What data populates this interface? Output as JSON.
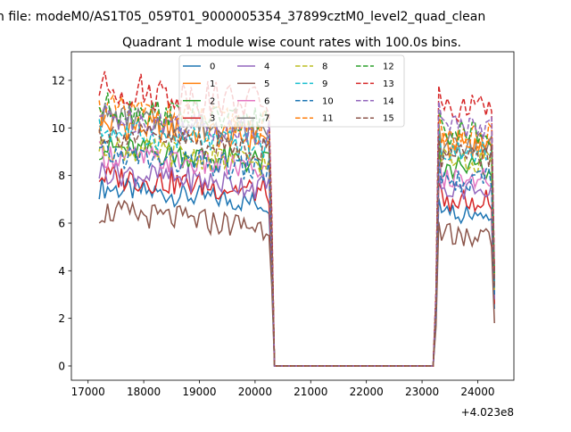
{
  "suptitle": "n file: modeM0/AS1T05_059T01_9000005354_37899cztM0_level2_quad_clean",
  "chart_data": {
    "type": "line",
    "title": "Quadrant 1 module wise count rates with 100.0s bins.",
    "xlabel": "",
    "ylabel": "",
    "x_offset_label": "+4.023e8",
    "x_ticks": [
      17000,
      18000,
      19000,
      20000,
      21000,
      22000,
      23000,
      24000
    ],
    "x_tick_labels": [
      "17000",
      "18000",
      "19000",
      "20000",
      "21000",
      "22000",
      "23000",
      "24000"
    ],
    "y_ticks": [
      0,
      2,
      4,
      6,
      8,
      10,
      12
    ],
    "y_tick_labels": [
      "0",
      "2",
      "4",
      "6",
      "8",
      "10",
      "12"
    ],
    "xlim": [
      16700,
      24650
    ],
    "ylim": [
      -0.6,
      13.2
    ],
    "grid": false,
    "legend_placement": "top-center",
    "legend_columns": 4,
    "segments": {
      "first": {
        "start": 17200,
        "end": 20300,
        "step": 50
      },
      "zero": {
        "start": 20350,
        "end": 23200
      },
      "second": {
        "start": 23250,
        "end": 24300,
        "step": 50
      }
    },
    "series": [
      {
        "name": "0",
        "color": "#1f77b4",
        "dash": "solid",
        "level_a": 6.6,
        "level_b": 6.4,
        "amp": 0.35,
        "end_drop": 2.4
      },
      {
        "name": "1",
        "color": "#ff7f0e",
        "dash": "solid",
        "level_a": 9.3,
        "level_b": 9.2,
        "amp": 0.45,
        "end_drop": 3.5
      },
      {
        "name": "2",
        "color": "#2ca02c",
        "dash": "solid",
        "level_a": 8.3,
        "level_b": 8.3,
        "amp": 0.4,
        "end_drop": 3.0
      },
      {
        "name": "3",
        "color": "#d62728",
        "dash": "solid",
        "level_a": 7.1,
        "level_b": 7.0,
        "amp": 0.4,
        "end_drop": 2.6
      },
      {
        "name": "4",
        "color": "#9467bd",
        "dash": "solid",
        "level_a": 7.3,
        "level_b": 7.3,
        "amp": 0.4,
        "end_drop": 2.8
      },
      {
        "name": "5",
        "color": "#8c564b",
        "dash": "solid",
        "level_a": 5.6,
        "level_b": 5.5,
        "amp": 0.4,
        "end_drop": 1.8
      },
      {
        "name": "6",
        "color": "#e377c2",
        "dash": "solid",
        "level_a": 8.0,
        "level_b": 7.9,
        "amp": 0.4,
        "end_drop": 3.0
      },
      {
        "name": "7",
        "color": "#7f7f7f",
        "dash": "solid",
        "level_a": 9.6,
        "level_b": 9.3,
        "amp": 0.4,
        "end_drop": 3.6
      },
      {
        "name": "8",
        "color": "#bcbd22",
        "dash": "dashed",
        "level_a": 8.3,
        "level_b": 8.6,
        "amp": 0.4,
        "end_drop": 3.2
      },
      {
        "name": "9",
        "color": "#17becf",
        "dash": "dashed",
        "level_a": 9.0,
        "level_b": 9.1,
        "amp": 0.4,
        "end_drop": 3.4
      },
      {
        "name": "10",
        "color": "#1f77b4",
        "dash": "dashed",
        "level_a": 8.0,
        "level_b": 7.8,
        "amp": 0.4,
        "end_drop": 3.0
      },
      {
        "name": "11",
        "color": "#ff7f0e",
        "dash": "dashed",
        "level_a": 9.9,
        "level_b": 9.6,
        "amp": 0.45,
        "end_drop": 3.8
      },
      {
        "name": "12",
        "color": "#2ca02c",
        "dash": "dashed",
        "level_a": 10.0,
        "level_b": 9.8,
        "amp": 0.45,
        "end_drop": 3.8
      },
      {
        "name": "13",
        "color": "#d62728",
        "dash": "dashed",
        "level_a": 10.8,
        "level_b": 10.7,
        "amp": 0.55,
        "end_drop": 4.0
      },
      {
        "name": "14",
        "color": "#9467bd",
        "dash": "dashed",
        "level_a": 9.6,
        "level_b": 10.1,
        "amp": 0.45,
        "end_drop": 3.7
      },
      {
        "name": "15",
        "color": "#8c564b",
        "dash": "dashed",
        "level_a": 8.9,
        "level_b": 8.8,
        "amp": 0.4,
        "end_drop": 3.3
      }
    ]
  }
}
